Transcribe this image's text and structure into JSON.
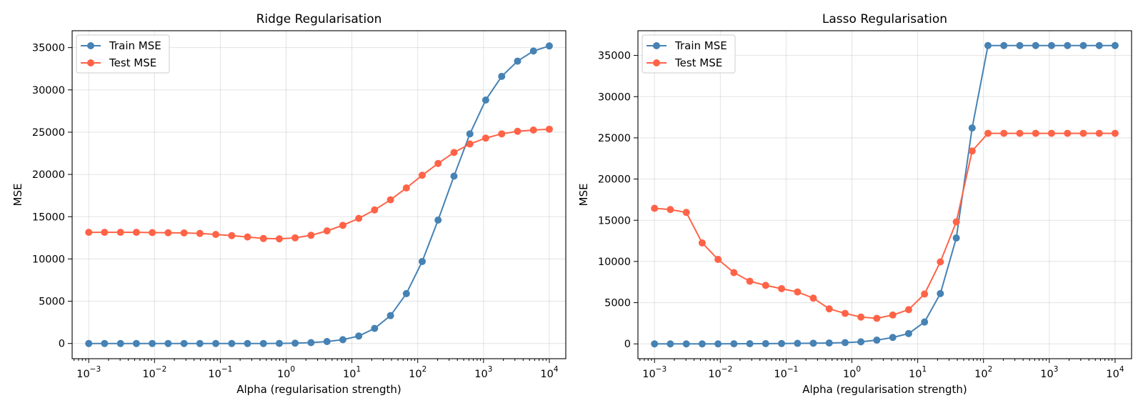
{
  "chart_data": [
    {
      "type": "line",
      "title": "Ridge Regularisation",
      "xlabel": "Alpha (regularisation strength)",
      "ylabel": "MSE",
      "xscale": "log",
      "xlim": [
        0.00056,
        17800
      ],
      "ylim": [
        -1800,
        37000
      ],
      "grid": true,
      "legend_position": "top-left",
      "yticks": [
        0,
        5000,
        10000,
        15000,
        20000,
        25000,
        30000,
        35000
      ],
      "xtick_exponents": [
        -3,
        -2,
        -1,
        0,
        1,
        2,
        3,
        4
      ],
      "x": [
        0.001,
        0.00174,
        0.00304,
        0.0053,
        0.00924,
        0.0161,
        0.0281,
        0.0489,
        0.0853,
        0.149,
        0.259,
        0.452,
        0.788,
        1.37,
        2.39,
        4.18,
        7.28,
        12.7,
        22.1,
        38.6,
        67.2,
        117,
        204,
        356,
        621,
        1080,
        1890,
        3290,
        5740,
        10000
      ],
      "series": [
        {
          "name": "Train MSE",
          "color": "#4682b4",
          "values": [
            0,
            0,
            0,
            0,
            0,
            0,
            0,
            0,
            0,
            0,
            0,
            0,
            10,
            40,
            100,
            230,
            450,
            880,
            1780,
            3300,
            5900,
            9700,
            14600,
            19800,
            24800,
            28800,
            31600,
            33400,
            34600,
            35200
          ]
        },
        {
          "name": "Test MSE",
          "color": "#ff6347",
          "values": [
            13150,
            13150,
            13150,
            13150,
            13120,
            13100,
            13080,
            13020,
            12900,
            12760,
            12600,
            12420,
            12380,
            12500,
            12800,
            13320,
            13980,
            14800,
            15800,
            17000,
            18400,
            19900,
            21300,
            22600,
            23600,
            24300,
            24800,
            25100,
            25250,
            25350
          ]
        }
      ]
    },
    {
      "type": "line",
      "title": "Lasso Regularisation",
      "xlabel": "Alpha (regularisation strength)",
      "ylabel": "MSE",
      "xscale": "log",
      "xlim": [
        0.00056,
        17800
      ],
      "ylim": [
        -1800,
        38000
      ],
      "grid": true,
      "legend_position": "top-left",
      "yticks": [
        0,
        5000,
        10000,
        15000,
        20000,
        25000,
        30000,
        35000
      ],
      "xtick_exponents": [
        -3,
        -2,
        -1,
        0,
        1,
        2,
        3,
        4
      ],
      "x": [
        0.001,
        0.00174,
        0.00304,
        0.0053,
        0.00924,
        0.0161,
        0.0281,
        0.0489,
        0.0853,
        0.149,
        0.259,
        0.452,
        0.788,
        1.37,
        2.39,
        4.18,
        7.28,
        12.7,
        22.1,
        38.6,
        67.2,
        117,
        204,
        356,
        621,
        1080,
        1890,
        3290,
        5740,
        10000
      ],
      "series": [
        {
          "name": "Train MSE",
          "color": "#4682b4",
          "values": [
            0,
            0,
            0,
            0,
            0,
            10,
            20,
            30,
            40,
            60,
            80,
            110,
            150,
            250,
            450,
            780,
            1250,
            2650,
            6100,
            12850,
            26200,
            36200,
            36200,
            36200,
            36200,
            36200,
            36200,
            36200,
            36200,
            36200
          ]
        },
        {
          "name": "Test MSE",
          "color": "#ff6347",
          "values": [
            16450,
            16300,
            15950,
            12250,
            10250,
            8650,
            7600,
            7100,
            6700,
            6300,
            5550,
            4250,
            3700,
            3250,
            3100,
            3500,
            4150,
            6050,
            9950,
            14800,
            23400,
            25550,
            25550,
            25550,
            25550,
            25550,
            25550,
            25550,
            25550,
            25550
          ]
        }
      ]
    }
  ]
}
